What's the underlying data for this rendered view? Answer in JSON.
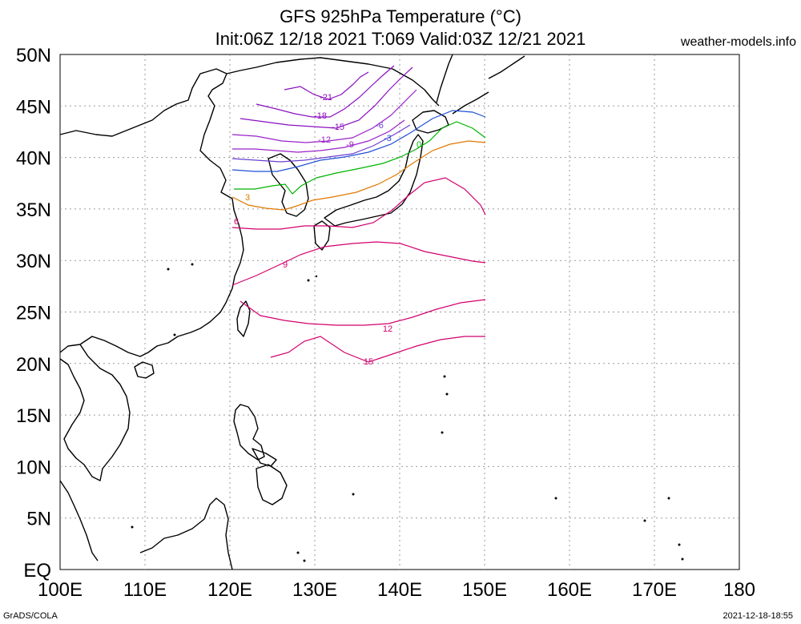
{
  "title": {
    "line1": "GFS 925hPa Temperature (°C)",
    "line2": "Init:06Z 12/18 2021 T:069 Valid:03Z 12/21 2021"
  },
  "brand": "weather-models.info",
  "footer": {
    "left": "GrADS/COLA",
    "right": "2021-12-18-18:55"
  },
  "map": {
    "lon_range": [
      100,
      180
    ],
    "lat_range": [
      0,
      50
    ],
    "data_lon_range": [
      120,
      150
    ],
    "x_ticks": [
      "100E",
      "110E",
      "120E",
      "130E",
      "140E",
      "150E",
      "160E",
      "170E",
      "180"
    ],
    "y_ticks": [
      "EQ",
      "5N",
      "10N",
      "15N",
      "20N",
      "25N",
      "30N",
      "35N",
      "40N",
      "45N",
      "50N"
    ],
    "grid": "dotted"
  },
  "contours": [
    {
      "value": "-21",
      "color": "#8b0fbf"
    },
    {
      "value": "-18",
      "color": "#8b0fbf"
    },
    {
      "value": "-15",
      "color": "#8b0fbf"
    },
    {
      "value": "-12",
      "color": "#9a22c8"
    },
    {
      "value": "-9",
      "color": "#9a22c8"
    },
    {
      "value": "-6",
      "color": "#6a3fd0"
    },
    {
      "value": "-3",
      "color": "#1f4fd6"
    },
    {
      "value": "0",
      "color": "#00b400"
    },
    {
      "value": "3",
      "color": "#e07800"
    },
    {
      "value": "6",
      "color": "#d2006e"
    },
    {
      "value": "9",
      "color": "#d2006e"
    },
    {
      "value": "12",
      "color": "#d2006e"
    },
    {
      "value": "15",
      "color": "#d2006e"
    }
  ]
}
